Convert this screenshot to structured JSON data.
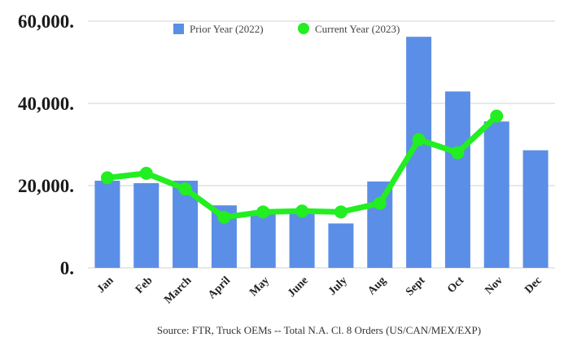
{
  "chart_data": {
    "type": "bar",
    "title": "",
    "xlabel": "",
    "ylabel": "",
    "ylim": [
      0,
      60000
    ],
    "yticks": [
      0,
      20000,
      40000,
      60000
    ],
    "ytick_labels": [
      "0.",
      "20,000.",
      "40,000.",
      "60,000."
    ],
    "categories": [
      "Jan",
      "Feb",
      "March",
      "April",
      "May",
      "June",
      "July",
      "Aug",
      "Sept",
      "Oct",
      "Nov",
      "Dec"
    ],
    "series": [
      {
        "name": "Prior Year (2022)",
        "kind": "bar",
        "color": "#5b8ee6",
        "values": [
          21200,
          20600,
          21200,
          15200,
          13800,
          13900,
          10800,
          21000,
          56200,
          42900,
          35600,
          28600
        ]
      },
      {
        "name": "Current Year (2023)",
        "kind": "line",
        "color": "#22ee22",
        "values": [
          21900,
          23000,
          19200,
          12300,
          13600,
          13800,
          13600,
          15700,
          31200,
          28000,
          36900,
          null
        ]
      }
    ],
    "grid": true,
    "legend_position": "top"
  },
  "source": "Source: FTR, Truck OEMs -- Total N.A. Cl. 8 Orders (US/CAN/MEX/EXP)"
}
